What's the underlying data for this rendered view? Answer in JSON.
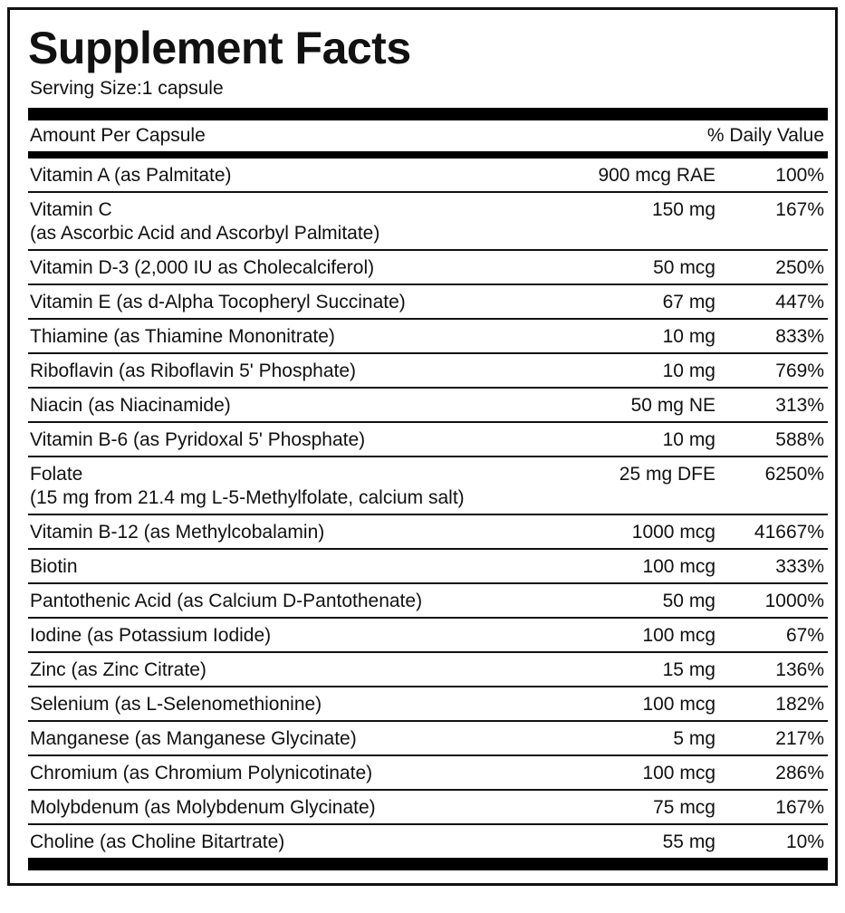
{
  "title": "Supplement Facts",
  "serving_size": "Serving Size:1 capsule",
  "header": {
    "left": "Amount Per Capsule",
    "right": "% Daily Value"
  },
  "rows": [
    {
      "name": "Vitamin A (as Palmitate)",
      "sub": "",
      "amount": "900 mcg RAE",
      "dv": "100%"
    },
    {
      "name": "Vitamin C",
      "sub": "(as Ascorbic Acid and Ascorbyl Palmitate)",
      "amount": "150 mg",
      "dv": "167%"
    },
    {
      "name": "Vitamin D-3 (2,000 IU as Cholecalciferol)",
      "sub": "",
      "amount": "50 mcg",
      "dv": "250%"
    },
    {
      "name": "Vitamin E (as d-Alpha Tocopheryl Succinate)",
      "sub": "",
      "amount": "67 mg",
      "dv": "447%"
    },
    {
      "name": "Thiamine (as Thiamine Mononitrate)",
      "sub": "",
      "amount": "10 mg",
      "dv": "833%"
    },
    {
      "name": "Riboflavin (as Riboflavin 5' Phosphate)",
      "sub": "",
      "amount": "10 mg",
      "dv": "769%"
    },
    {
      "name": "Niacin (as Niacinamide)",
      "sub": "",
      "amount": "50 mg NE",
      "dv": "313%"
    },
    {
      "name": "Vitamin B-6 (as Pyridoxal 5' Phosphate)",
      "sub": "",
      "amount": "10 mg",
      "dv": "588%"
    },
    {
      "name": "Folate",
      "sub": "(15 mg from 21.4 mg L-5-Methylfolate, calcium salt)",
      "amount": "25 mg DFE",
      "dv": "6250%"
    },
    {
      "name": "Vitamin B-12 (as Methylcobalamin)",
      "sub": "",
      "amount": "1000 mcg",
      "dv": "41667%"
    },
    {
      "name": "Biotin",
      "sub": "",
      "amount": "100 mcg",
      "dv": "333%"
    },
    {
      "name": "Pantothenic Acid (as Calcium D-Pantothenate)",
      "sub": "",
      "amount": "50 mg",
      "dv": "1000%"
    },
    {
      "name": "Iodine (as Potassium Iodide)",
      "sub": "",
      "amount": "100 mcg",
      "dv": "67%"
    },
    {
      "name": "Zinc (as Zinc Citrate)",
      "sub": "",
      "amount": "15 mg",
      "dv": "136%"
    },
    {
      "name": "Selenium (as L-Selenomethionine)",
      "sub": "",
      "amount": "100 mcg",
      "dv": "182%"
    },
    {
      "name": "Manganese (as Manganese Glycinate)",
      "sub": "",
      "amount": "5 mg",
      "dv": "217%"
    },
    {
      "name": "Chromium (as Chromium Polynicotinate)",
      "sub": "",
      "amount": "100 mcg",
      "dv": "286%"
    },
    {
      "name": "Molybdenum (as Molybdenum Glycinate)",
      "sub": "",
      "amount": "75 mcg",
      "dv": "167%"
    },
    {
      "name": "Choline (as Choline Bitartrate)",
      "sub": "",
      "amount": "55 mg",
      "dv": "10%"
    }
  ]
}
